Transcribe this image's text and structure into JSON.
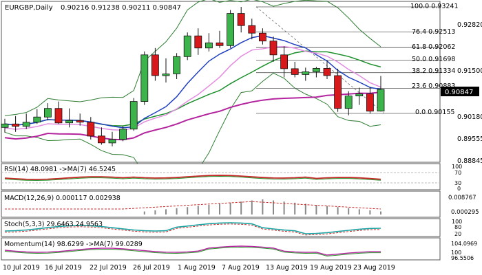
{
  "header": {
    "symbol": "EURGBP,Daily",
    "ohlc": "0.90216 0.91238 0.90211 0.90847"
  },
  "price_ticks": [
    "0.92820",
    "0.91500",
    "0.90180",
    "0.89555",
    "0.88845"
  ],
  "current_price": "0.90847",
  "fib_levels": [
    {
      "label": "100.0 0.93241",
      "value": 0.93241
    },
    {
      "label": "76.4 0.92513",
      "value": 0.92513
    },
    {
      "label": "61.8 0.92062",
      "value": 0.92062
    },
    {
      "label": "50.0 0.91698",
      "value": 0.91698
    },
    {
      "label": "38.2 0.91334",
      "value": 0.91334
    },
    {
      "label": "23.6 0.90883",
      "value": 0.90883
    },
    {
      "label": "0.0 0.90155",
      "value": 0.90155
    }
  ],
  "x_labels": [
    "10 Jul 2019",
    "16 Jul 2019",
    "22 Jul 2019",
    "26 Jul 2019",
    "1 Aug 2019",
    "7 Aug 2019",
    "13 Aug 2019",
    "19 Aug 2019",
    "23 Aug 2019"
  ],
  "panels": {
    "rsi": {
      "label": "RSI(14) 48.0981 ->MA(7) 46.5245",
      "ticks": [
        "100",
        "70",
        "30",
        "0"
      ]
    },
    "macd": {
      "label": "MACD(12,26,9) 0.000117 0.002938",
      "ticks": [
        "0.008767",
        "0.000295"
      ]
    },
    "stoch": {
      "label": "Stoch(5,3,3) 29.6463 24.9563",
      "ticks": [
        "100",
        "80",
        "20"
      ]
    },
    "momentum": {
      "label": "Momentum(14) 98.6299 ->MA(7) 99.0289",
      "ticks": [
        "104.0969",
        "100",
        "96.5506"
      ]
    }
  },
  "colors": {
    "up": "#3cb44b",
    "down": "#d7191c",
    "sma_fast": "#1f3fbf",
    "sma_mid": "#1a8f2a",
    "sma_slow": "#b3249e",
    "bollinger": "#2e7d32",
    "bollinger_mid": "#e38be0",
    "rsi": "#c62828",
    "stoch_main": "#1ba3a3"
  },
  "chart_data": {
    "type": "candlestick",
    "x": [
      "10 Jul 2019",
      "11 Jul 2019",
      "12 Jul 2019",
      "15 Jul 2019",
      "16 Jul 2019",
      "17 Jul 2019",
      "18 Jul 2019",
      "19 Jul 2019",
      "22 Jul 2019",
      "23 Jul 2019",
      "24 Jul 2019",
      "25 Jul 2019",
      "26 Jul 2019",
      "29 Jul 2019",
      "30 Jul 2019",
      "31 Jul 2019",
      "1 Aug 2019",
      "2 Aug 2019",
      "5 Aug 2019",
      "6 Aug 2019",
      "7 Aug 2019",
      "8 Aug 2019",
      "9 Aug 2019",
      "12 Aug 2019",
      "13 Aug 2019",
      "14 Aug 2019",
      "15 Aug 2019",
      "16 Aug 2019",
      "19 Aug 2019",
      "20 Aug 2019",
      "21 Aug 2019",
      "22 Aug 2019",
      "23 Aug 2019",
      "26 Aug 2019",
      "27 Aug 2019",
      "28 Aug 2019"
    ],
    "open": [
      0.8975,
      0.8985,
      0.8978,
      0.899,
      0.9005,
      0.903,
      0.8988,
      0.8995,
      0.899,
      0.895,
      0.893,
      0.894,
      0.897,
      0.905,
      0.9185,
      0.9125,
      0.913,
      0.918,
      0.924,
      0.9205,
      0.922,
      0.9212,
      0.9305,
      0.927,
      0.9248,
      0.9225,
      0.9185,
      0.9145,
      0.9128,
      0.9136,
      0.9146,
      0.9125,
      0.903,
      0.9066,
      0.9072,
      0.9022
    ],
    "high": [
      0.9,
      0.9008,
      0.9015,
      0.9028,
      0.9045,
      0.905,
      0.903,
      0.9015,
      0.9005,
      0.8975,
      0.8962,
      0.898,
      0.906,
      0.9195,
      0.9205,
      0.9175,
      0.919,
      0.925,
      0.9262,
      0.9248,
      0.9255,
      0.9315,
      0.9324,
      0.929,
      0.9262,
      0.9238,
      0.921,
      0.9165,
      0.9148,
      0.915,
      0.9168,
      0.9145,
      0.908,
      0.909,
      0.9092,
      0.9124
    ],
    "low": [
      0.896,
      0.8962,
      0.897,
      0.8985,
      0.8995,
      0.8985,
      0.8975,
      0.898,
      0.894,
      0.8925,
      0.892,
      0.8935,
      0.8965,
      0.904,
      0.911,
      0.9105,
      0.9115,
      0.917,
      0.9185,
      0.9195,
      0.9205,
      0.9205,
      0.925,
      0.923,
      0.9215,
      0.9165,
      0.912,
      0.912,
      0.911,
      0.912,
      0.9115,
      0.902,
      0.901,
      0.904,
      0.9015,
      0.9021
    ],
    "close": [
      0.8985,
      0.8978,
      0.899,
      0.9005,
      0.903,
      0.8988,
      0.8995,
      0.899,
      0.895,
      0.893,
      0.894,
      0.897,
      0.905,
      0.9185,
      0.9125,
      0.913,
      0.918,
      0.924,
      0.9205,
      0.922,
      0.9212,
      0.9305,
      0.927,
      0.9248,
      0.9225,
      0.9185,
      0.9145,
      0.9128,
      0.9136,
      0.9146,
      0.9125,
      0.903,
      0.9066,
      0.9072,
      0.9022,
      0.9085
    ],
    "ylim": [
      0.8874,
      0.934
    ],
    "fib_levels": [
      0.93241,
      0.92513,
      0.92062,
      0.91698,
      0.91334,
      0.90883,
      0.90155
    ]
  }
}
